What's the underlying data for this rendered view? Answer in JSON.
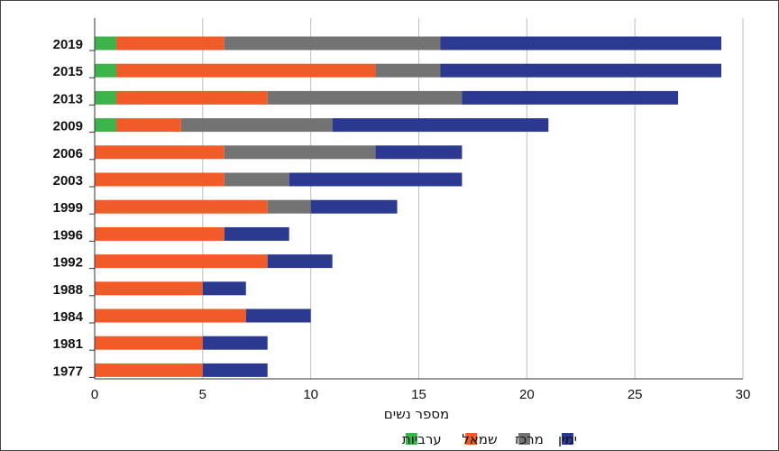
{
  "chart_data": {
    "type": "bar",
    "orientation": "horizontal",
    "stacked": true,
    "categories": [
      "2019",
      "2015",
      "2013",
      "2009",
      "2006",
      "2003",
      "1999",
      "1996",
      "1992",
      "1988",
      "1984",
      "1981",
      "1977"
    ],
    "series": [
      {
        "name": "ערביות",
        "color": "#3cb44b",
        "values": [
          1,
          1,
          1,
          1,
          0,
          0,
          0,
          0,
          0,
          0,
          0,
          0,
          0
        ]
      },
      {
        "name": "שמאל",
        "color": "#f15a29",
        "values": [
          5,
          12,
          7,
          3,
          6,
          6,
          8,
          6,
          8,
          5,
          7,
          5,
          5
        ]
      },
      {
        "name": "מרכז",
        "color": "#737373",
        "values": [
          10,
          3,
          9,
          7,
          7,
          3,
          2,
          0,
          0,
          0,
          0,
          0,
          0
        ]
      },
      {
        "name": "ימין",
        "color": "#2b3990",
        "values": [
          13,
          13,
          10,
          10,
          4,
          8,
          4,
          3,
          3,
          2,
          3,
          3,
          3
        ]
      }
    ],
    "xlabel": "מספר נשים",
    "ylabel": "",
    "xlim": [
      0,
      30
    ],
    "xticks": [
      "0",
      "5",
      "10",
      "15",
      "20",
      "25",
      "30"
    ],
    "grid": "vertical",
    "legend": "bottom-center"
  }
}
